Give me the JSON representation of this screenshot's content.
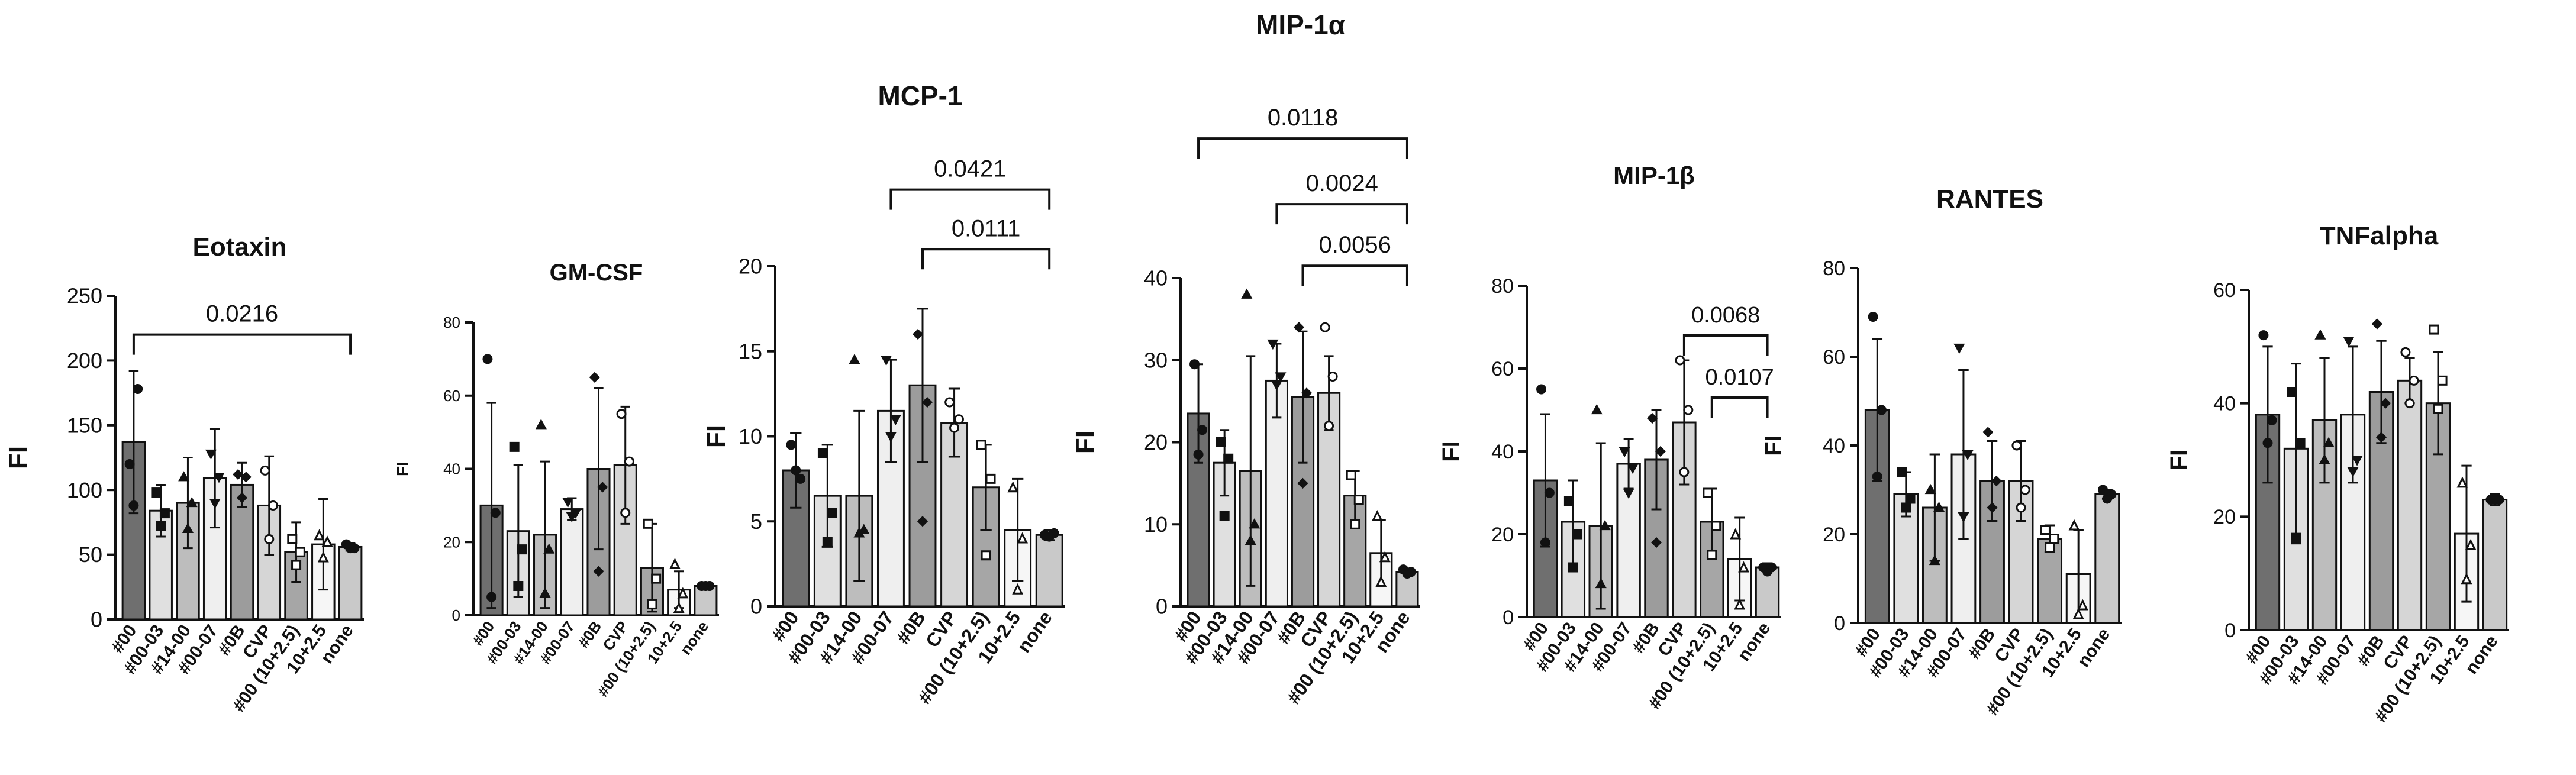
{
  "chart_data": [
    {
      "type": "bar",
      "title": "Eotaxin",
      "ylabel": "FI",
      "ylim": [
        0,
        250
      ],
      "yticks": [
        0,
        50,
        100,
        150,
        200,
        250
      ],
      "categories": [
        "#00",
        "#00-03",
        "#14-00",
        "#00-07",
        "#0B",
        "CVP",
        "#00 (10+2.5)",
        "10+2.5",
        "none"
      ],
      "values": [
        137,
        84,
        90,
        109,
        104,
        88,
        52,
        58,
        56
      ],
      "errors": [
        55,
        20,
        35,
        38,
        17,
        38,
        23,
        35,
        3
      ],
      "points": [
        [
          120,
          178,
          88
        ],
        [
          98,
          82,
          72
        ],
        [
          110,
          90,
          70
        ],
        [
          128,
          110,
          90
        ],
        [
          112,
          110,
          94
        ],
        [
          115,
          88,
          62
        ],
        [
          62,
          52,
          42
        ],
        [
          65,
          60,
          48
        ],
        [
          58,
          55,
          55
        ]
      ],
      "annotations": [
        {
          "from": 0,
          "to": 8,
          "label": "0.0216",
          "y": 220
        }
      ]
    },
    {
      "type": "bar",
      "title": "GM-CSF",
      "ylabel": "FI",
      "ylim": [
        0,
        80
      ],
      "yticks": [
        0,
        20,
        40,
        60,
        80
      ],
      "categories": [
        "#00",
        "#00-03",
        "#14-00",
        "#00-07",
        "#0B",
        "CVP",
        "#00 (10+2.5)",
        "10+2.5",
        "none"
      ],
      "values": [
        30,
        23,
        22,
        29,
        40,
        41,
        13,
        7,
        8
      ],
      "errors": [
        28,
        18,
        20,
        3,
        22,
        16,
        12,
        5,
        1
      ],
      "points": [
        [
          70,
          28,
          5
        ],
        [
          46,
          18,
          8
        ],
        [
          52,
          18,
          6
        ],
        [
          31,
          28,
          27
        ],
        [
          65,
          35,
          12
        ],
        [
          55,
          42,
          28
        ],
        [
          25,
          10,
          3
        ],
        [
          14,
          6,
          2
        ],
        [
          8,
          8,
          8
        ]
      ],
      "annotations": []
    },
    {
      "type": "bar",
      "title": "MCP-1",
      "ylabel": "FI",
      "ylim": [
        0,
        20
      ],
      "yticks": [
        0,
        5,
        10,
        15,
        20
      ],
      "categories": [
        "#00",
        "#00-03",
        "#14-00",
        "#00-07",
        "#0B",
        "CVP",
        "#00 (10+2.5)",
        "10+2.5",
        "none"
      ],
      "values": [
        8,
        6.5,
        6.5,
        11.5,
        13,
        10.8,
        7,
        4.5,
        4.2
      ],
      "errors": [
        2.2,
        3,
        5,
        3,
        4.5,
        2,
        2.5,
        3,
        0.3
      ],
      "points": [
        [
          9.5,
          7.5,
          8
        ],
        [
          9,
          5.5,
          3.8
        ],
        [
          14.5,
          4.5,
          4.3
        ],
        [
          14.5,
          11,
          10
        ],
        [
          16,
          12,
          5
        ],
        [
          12,
          11,
          10.5
        ],
        [
          9.5,
          7.5,
          3
        ],
        [
          7,
          4,
          1
        ],
        [
          4.2,
          4.3,
          4.1
        ]
      ],
      "annotations": [
        {
          "from": 3,
          "to": 8,
          "label": "0.0421",
          "y": 24.5
        },
        {
          "from": 4,
          "to": 8,
          "label": "0.0111",
          "y": 21
        }
      ]
    },
    {
      "type": "bar",
      "title": "MIP-1α",
      "ylabel": "FI",
      "ylim": [
        0,
        40
      ],
      "yticks": [
        0,
        10,
        20,
        30,
        40
      ],
      "categories": [
        "#00",
        "#00-03",
        "#14-00",
        "#00-07",
        "#0B",
        "CVP",
        "#00 (10+2.5)",
        "10+2.5",
        "none"
      ],
      "values": [
        23.5,
        17.5,
        16.5,
        27.5,
        25.5,
        26,
        13.5,
        6.5,
        4.2
      ],
      "errors": [
        6,
        4,
        14,
        4.5,
        8,
        4.5,
        3,
        4,
        0.4
      ],
      "points": [
        [
          29.5,
          21.5,
          18.5
        ],
        [
          20,
          18,
          11
        ],
        [
          38,
          10,
          8
        ],
        [
          32,
          28,
          27
        ],
        [
          34,
          26,
          15
        ],
        [
          34,
          28,
          22
        ],
        [
          16,
          13,
          10
        ],
        [
          11,
          6,
          3
        ],
        [
          4.5,
          4.2,
          4
        ]
      ],
      "annotations": [
        {
          "from": 0,
          "to": 8,
          "label": "0.0118",
          "y": 57
        },
        {
          "from": 3,
          "to": 8,
          "label": "0.0024",
          "y": 49
        },
        {
          "from": 4,
          "to": 8,
          "label": "0.0056",
          "y": 41.5
        }
      ]
    },
    {
      "type": "bar",
      "title": "MIP-1β",
      "ylabel": "FI",
      "ylim": [
        0,
        80
      ],
      "yticks": [
        0,
        20,
        40,
        60,
        80
      ],
      "categories": [
        "#00",
        "#00-03",
        "#14-00",
        "#00-07",
        "#0B",
        "CVP",
        "#00 (10+2.5)",
        "10+2.5",
        "none"
      ],
      "values": [
        33,
        23,
        22,
        37,
        38,
        47,
        23,
        14,
        12
      ],
      "errors": [
        16,
        10,
        20,
        6,
        12,
        15,
        8,
        10,
        1
      ],
      "points": [
        [
          55,
          30,
          18
        ],
        [
          28,
          20,
          12
        ],
        [
          50,
          22,
          8
        ],
        [
          40,
          36,
          30
        ],
        [
          48,
          40,
          18
        ],
        [
          62,
          50,
          35
        ],
        [
          30,
          22,
          15
        ],
        [
          20,
          12,
          3
        ],
        [
          12,
          12,
          11
        ]
      ],
      "annotations": [
        {
          "from": 6,
          "to": 8,
          "label": "0.0107",
          "y": 53
        },
        {
          "from": 5,
          "to": 8,
          "label": "0.0068",
          "y": 68
        }
      ]
    },
    {
      "type": "bar",
      "title": "RANTES",
      "ylabel": "FI",
      "ylim": [
        0,
        80
      ],
      "yticks": [
        0,
        20,
        40,
        60,
        80
      ],
      "categories": [
        "#00",
        "#00-03",
        "#14-00",
        "#00-07",
        "#0B",
        "CVP",
        "#00 (10+2.5)",
        "10+2.5",
        "none"
      ],
      "values": [
        48,
        29,
        26,
        38,
        32,
        32,
        19,
        11,
        29
      ],
      "errors": [
        16,
        5,
        12,
        19,
        9,
        9,
        3,
        10,
        1
      ],
      "points": [
        [
          69,
          48,
          33
        ],
        [
          34,
          28,
          26
        ],
        [
          30,
          26,
          14
        ],
        [
          62,
          38,
          24
        ],
        [
          43,
          32,
          26
        ],
        [
          40,
          30,
          26
        ],
        [
          21,
          19,
          17
        ],
        [
          22,
          4,
          2
        ],
        [
          30,
          29,
          28
        ]
      ],
      "annotations": []
    },
    {
      "type": "bar",
      "title": "TNFalpha",
      "ylabel": "FI",
      "ylim": [
        0,
        60
      ],
      "yticks": [
        0,
        20,
        40,
        60
      ],
      "categories": [
        "#00",
        "#00-03",
        "#14-00",
        "#00-07",
        "#0B",
        "CVP",
        "#00 (10+2.5)",
        "10+2.5",
        "none"
      ],
      "values": [
        38,
        32,
        37,
        38,
        42,
        44,
        40,
        17,
        23
      ],
      "errors": [
        12,
        15,
        11,
        12,
        9,
        4,
        9,
        12,
        1
      ],
      "points": [
        [
          52,
          37,
          33
        ],
        [
          42,
          33,
          16
        ],
        [
          52,
          33,
          30
        ],
        [
          51,
          30,
          28
        ],
        [
          54,
          40,
          34
        ],
        [
          49,
          44,
          40
        ],
        [
          53,
          44,
          39
        ],
        [
          26,
          15,
          9
        ],
        [
          23,
          23,
          23
        ]
      ],
      "annotations": []
    }
  ],
  "colors": {
    "bar_fills": [
      "#6f6f6f",
      "#e0e0e0",
      "#bdbdbd",
      "#efefef",
      "#9c9c9c",
      "#d6d6d6",
      "#a6a6a6",
      "#f6f6f6",
      "#c9c9c9"
    ],
    "stroke": "#111111"
  },
  "markers": [
    "circle",
    "square",
    "triangle-up",
    "triangle-down",
    "diamond",
    "circle-open",
    "square-open",
    "triangle-open",
    "circle"
  ]
}
